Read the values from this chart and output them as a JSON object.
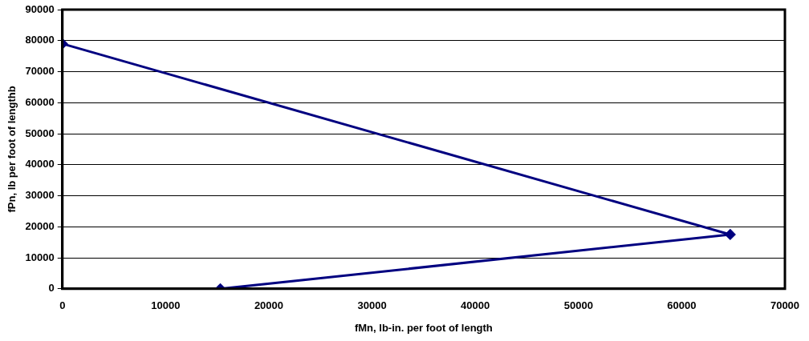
{
  "chart_data": {
    "type": "line",
    "xlabel": "fMn, lb-in. per foot of length",
    "ylabel": "fPn, lb per foot of lengthb",
    "x": [
      0,
      64700,
      15300
    ],
    "series": [
      {
        "color": "#000080",
        "values": [
          79000,
          17500,
          0
        ]
      }
    ],
    "xlim": [
      0,
      70000
    ],
    "xticks": [
      0,
      10000,
      20000,
      30000,
      40000,
      50000,
      60000,
      70000
    ],
    "ylim": [
      0,
      90000
    ],
    "yticks": [
      0,
      10000,
      20000,
      30000,
      40000,
      50000,
      60000,
      70000,
      80000,
      90000
    ],
    "grid": "y",
    "marker": "diamond",
    "line_style": "solid",
    "legend": false
  }
}
